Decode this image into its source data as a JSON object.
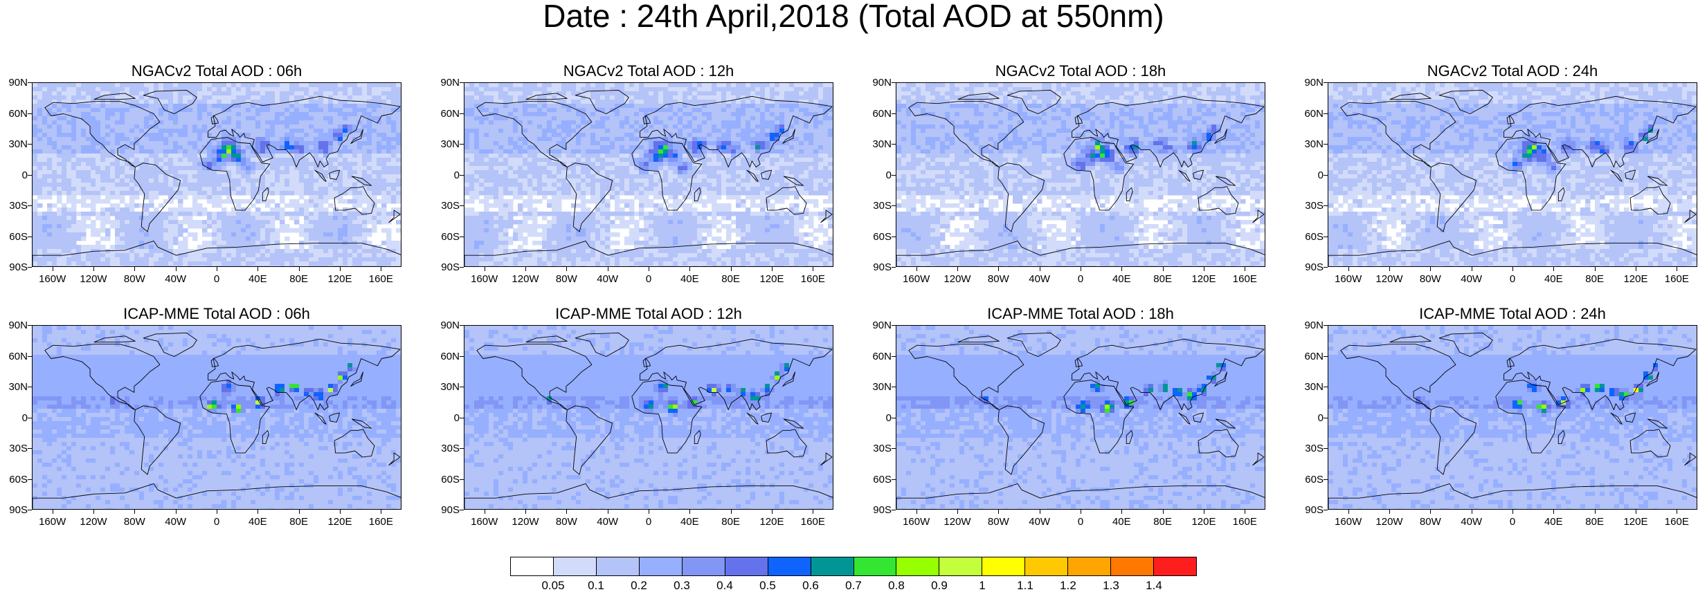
{
  "title": "Date : 24th April,2018 (Total AOD at 550nm)",
  "panels": [
    {
      "id": "ngac-06h",
      "title": "NGACv2 Total AOD : 06h",
      "model": "NGACv2",
      "hour": "06h"
    },
    {
      "id": "ngac-12h",
      "title": "NGACv2 Total AOD : 12h",
      "model": "NGACv2",
      "hour": "12h"
    },
    {
      "id": "ngac-18h",
      "title": "NGACv2 Total AOD : 18h",
      "model": "NGACv2",
      "hour": "18h"
    },
    {
      "id": "ngac-24h",
      "title": "NGACv2 Total AOD : 24h",
      "model": "NGACv2",
      "hour": "24h"
    },
    {
      "id": "icap-06h",
      "title": "ICAP-MME Total AOD : 06h",
      "model": "ICAP-MME",
      "hour": "06h"
    },
    {
      "id": "icap-12h",
      "title": "ICAP-MME Total AOD : 12h",
      "model": "ICAP-MME",
      "hour": "12h"
    },
    {
      "id": "icap-18h",
      "title": "ICAP-MME Total AOD : 18h",
      "model": "ICAP-MME",
      "hour": "18h"
    },
    {
      "id": "icap-24h",
      "title": "ICAP-MME Total AOD : 24h",
      "model": "ICAP-MME",
      "hour": "24h"
    }
  ],
  "axes": {
    "lat_labels": [
      "90N",
      "60N",
      "30N",
      "0",
      "30S",
      "60S",
      "90S"
    ],
    "lat_values": [
      90,
      60,
      30,
      0,
      -30,
      -60,
      -90
    ],
    "lon_labels": [
      "160W",
      "120W",
      "80W",
      "40W",
      "0",
      "40E",
      "80E",
      "120E",
      "160E"
    ],
    "lon_values": [
      -160,
      -120,
      -80,
      -40,
      0,
      40,
      80,
      120,
      160
    ],
    "lon_range": [
      -180,
      180
    ],
    "lat_range": [
      -90,
      90
    ]
  },
  "colorbar": {
    "labels": [
      "0.05",
      "0.1",
      "0.2",
      "0.3",
      "0.4",
      "0.5",
      "0.6",
      "0.7",
      "0.8",
      "0.9",
      "1",
      "1.1",
      "1.2",
      "1.3",
      "1.4"
    ],
    "colors": [
      "#ffffff",
      "#d2dcfa",
      "#b4c3f8",
      "#96afff",
      "#8296f5",
      "#6473eb",
      "#0f64ff",
      "#009696",
      "#32e632",
      "#96ff00",
      "#c3ff3c",
      "#ffff00",
      "#ffc800",
      "#ffa500",
      "#ff7800",
      "#ff1e1e"
    ]
  },
  "map_colors": {
    "ocean_low": "#ffffff",
    "background": "#d4defb",
    "coast": "#000000"
  }
}
